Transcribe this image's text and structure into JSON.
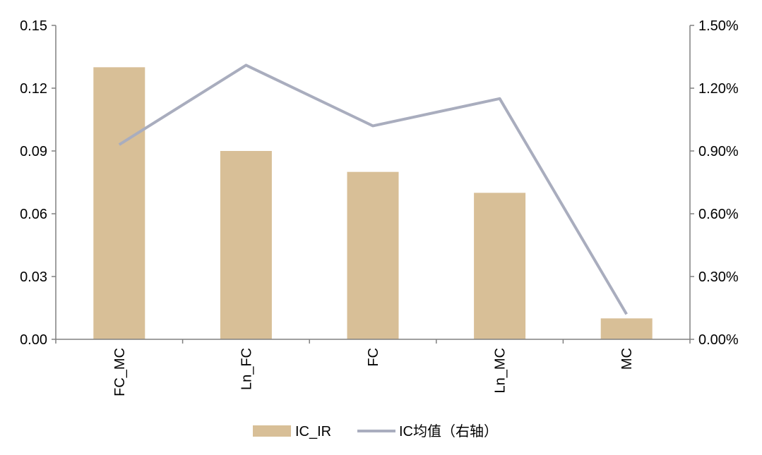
{
  "chart_data": {
    "type": "bar",
    "categories": [
      "FC_MC",
      "Ln_FC",
      "FC",
      "Ln_MC",
      "MC"
    ],
    "series": [
      {
        "name": "IC_IR",
        "type": "bar",
        "axis": "left",
        "color": "#d8bf97",
        "values": [
          0.13,
          0.09,
          0.08,
          0.07,
          0.01
        ]
      },
      {
        "name": "IC均值（右轴）",
        "type": "line",
        "axis": "right",
        "color": "#a9adbe",
        "values": [
          0.0093,
          0.0131,
          0.0102,
          0.0115,
          0.0012
        ]
      }
    ],
    "y_left": {
      "ylim": [
        0,
        0.15
      ],
      "ticks": [
        0.0,
        0.03,
        0.06,
        0.09,
        0.12,
        0.15
      ],
      "tick_labels": [
        "0.00",
        "0.03",
        "0.06",
        "0.09",
        "0.12",
        "0.15"
      ]
    },
    "y_right": {
      "ylim": [
        0,
        0.015
      ],
      "ticks": [
        0.0,
        0.003,
        0.006,
        0.009,
        0.012,
        0.015
      ],
      "tick_labels": [
        "0.00%",
        "0.30%",
        "0.60%",
        "0.90%",
        "1.20%",
        "1.50%"
      ]
    },
    "title": "",
    "xlabel": "",
    "ylabel": "",
    "grid": false,
    "legend": {
      "position": "bottom",
      "items": [
        "IC_IR",
        "IC均值（右轴）"
      ]
    }
  }
}
